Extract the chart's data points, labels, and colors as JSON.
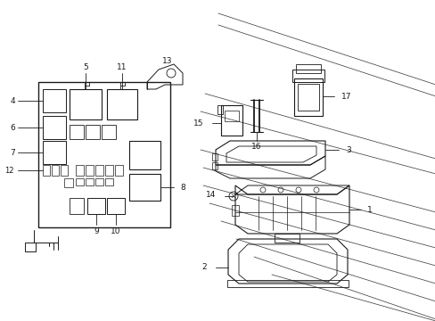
{
  "bg_color": "#ffffff",
  "line_color": "#1a1a1a",
  "fig_width": 4.89,
  "fig_height": 3.6,
  "dpi": 100,
  "panel_lines": [
    [
      2.18,
      3.55,
      4.89,
      2.72
    ],
    [
      2.35,
      3.58,
      4.89,
      2.9
    ],
    [
      2.08,
      3.35,
      4.89,
      2.52
    ],
    [
      2.1,
      2.65,
      4.89,
      1.82
    ],
    [
      2.1,
      2.42,
      4.89,
      1.6
    ],
    [
      2.2,
      2.05,
      4.89,
      1.28
    ],
    [
      2.2,
      1.88,
      4.89,
      1.1
    ],
    [
      2.2,
      1.68,
      4.89,
      0.88
    ],
    [
      2.3,
      1.48,
      4.89,
      0.68
    ],
    [
      2.4,
      1.28,
      4.89,
      0.5
    ],
    [
      2.55,
      1.1,
      4.89,
      0.32
    ],
    [
      2.7,
      0.88,
      4.89,
      0.12
    ],
    [
      2.85,
      0.68,
      4.89,
      0.0
    ]
  ]
}
